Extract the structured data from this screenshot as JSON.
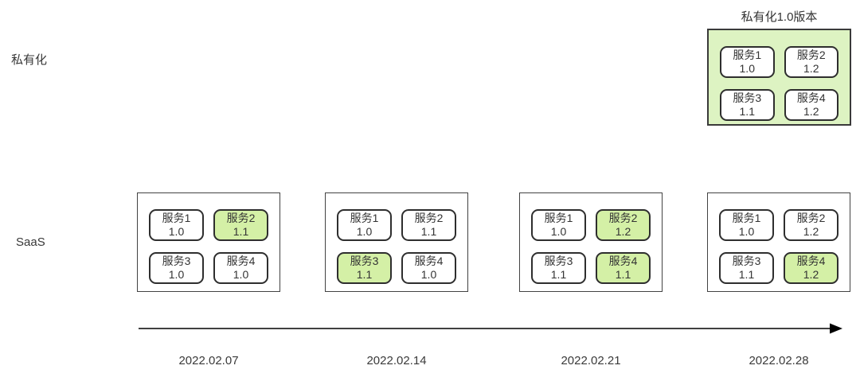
{
  "labels": {
    "private_row": "私有化",
    "saas_row": "SaaS",
    "private_box_title": "私有化1.0版本"
  },
  "private_box": {
    "services": [
      {
        "name": "服务1",
        "version": "1.0",
        "highlight": false
      },
      {
        "name": "服务2",
        "version": "1.2",
        "highlight": false
      },
      {
        "name": "服务3",
        "version": "1.1",
        "highlight": false
      },
      {
        "name": "服务4",
        "version": "1.2",
        "highlight": false
      }
    ]
  },
  "saas_releases": [
    {
      "date": "2022.02.07",
      "services": [
        {
          "name": "服务1",
          "version": "1.0",
          "highlight": false
        },
        {
          "name": "服务2",
          "version": "1.1",
          "highlight": true
        },
        {
          "name": "服务3",
          "version": "1.0",
          "highlight": false
        },
        {
          "name": "服务4",
          "version": "1.0",
          "highlight": false
        }
      ]
    },
    {
      "date": "2022.02.14",
      "services": [
        {
          "name": "服务1",
          "version": "1.0",
          "highlight": false
        },
        {
          "name": "服务2",
          "version": "1.1",
          "highlight": false
        },
        {
          "name": "服务3",
          "version": "1.1",
          "highlight": true
        },
        {
          "name": "服务4",
          "version": "1.0",
          "highlight": false
        }
      ]
    },
    {
      "date": "2022.02.21",
      "services": [
        {
          "name": "服务1",
          "version": "1.0",
          "highlight": false
        },
        {
          "name": "服务2",
          "version": "1.2",
          "highlight": true
        },
        {
          "name": "服务3",
          "version": "1.1",
          "highlight": false
        },
        {
          "name": "服务4",
          "version": "1.1",
          "highlight": true
        }
      ]
    },
    {
      "date": "2022.02.28",
      "services": [
        {
          "name": "服务1",
          "version": "1.0",
          "highlight": false
        },
        {
          "name": "服务2",
          "version": "1.2",
          "highlight": false
        },
        {
          "name": "服务3",
          "version": "1.1",
          "highlight": false
        },
        {
          "name": "服务4",
          "version": "1.2",
          "highlight": true
        }
      ]
    }
  ],
  "colors": {
    "container_green": "#ddf3c2",
    "highlight_green": "#d4f0a6",
    "border_dark": "#2e2e2e",
    "arrow": "#000000"
  }
}
